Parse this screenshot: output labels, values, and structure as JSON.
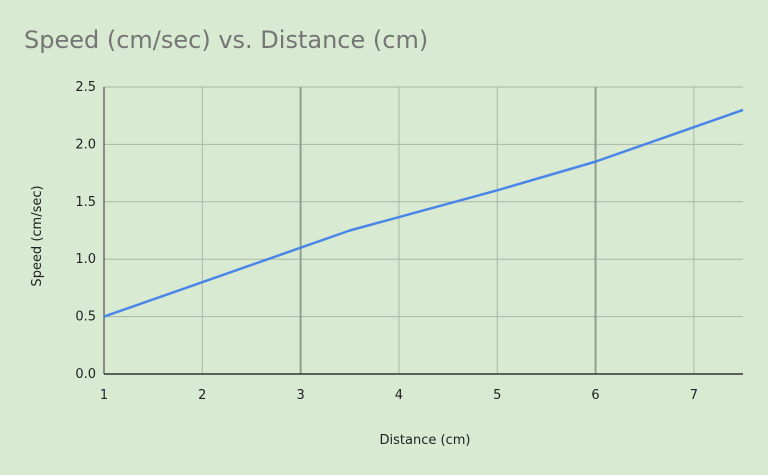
{
  "chart_data": {
    "type": "line",
    "title": "Speed (cm/sec) vs. Distance (cm)",
    "xlabel": "Distance (cm)",
    "ylabel": "Speed (cm/sec)",
    "xlim": [
      1,
      7.5
    ],
    "ylim": [
      0,
      2.5
    ],
    "xticks": [
      1,
      2,
      3,
      4,
      5,
      6,
      7
    ],
    "yticks": [
      0,
      0.5,
      1,
      1.5,
      2,
      2.5
    ],
    "xtick_labels": [
      "1",
      "2",
      "3",
      "4",
      "5",
      "6",
      "7"
    ],
    "ytick_labels": [
      "0.0",
      "0.5",
      "1.0",
      "1.5",
      "2.0",
      "2.5"
    ],
    "grid": true,
    "legend": "none",
    "series": [
      {
        "color": "#4a86e8",
        "x": [
          1,
          3,
          3.5,
          5,
          6,
          7.5
        ],
        "y": [
          0.5,
          1.1,
          1.25,
          1.6,
          1.85,
          2.3
        ]
      }
    ]
  },
  "colors": {
    "background": "#d9ead3",
    "grid": "#a8b8a4",
    "grid_major": "#8f9f8b",
    "axis": "#333333",
    "title": "#757575",
    "line": "#4a86e8"
  }
}
